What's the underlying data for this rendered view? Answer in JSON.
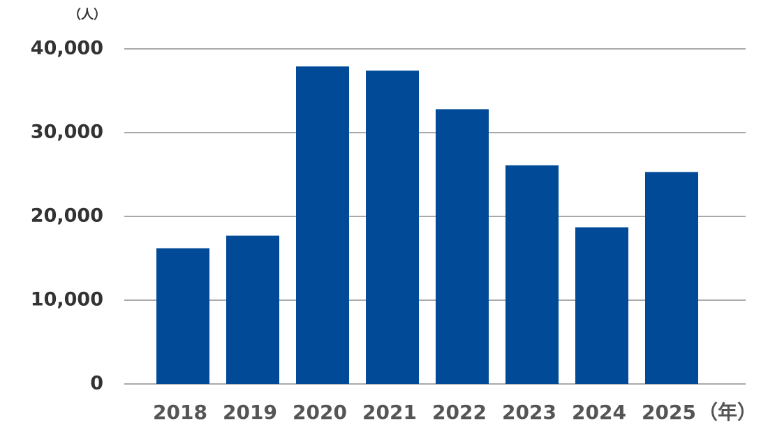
{
  "chart_data": {
    "type": "bar",
    "y_axis_label": "（人）",
    "x_axis_label": "（年）",
    "categories": [
      "2018",
      "2019",
      "2020",
      "2021",
      "2022",
      "2023",
      "2024",
      "2025"
    ],
    "values": [
      16200,
      17700,
      37900,
      37400,
      32800,
      26100,
      18700,
      25300
    ],
    "color": "#004a98",
    "ylim": [
      0,
      40000
    ],
    "yticks": [
      0,
      {
        "value": 10000,
        "label": "10,000"
      },
      {
        "value": 20000,
        "label": "20,000"
      },
      {
        "value": 30000,
        "label": "30,000"
      },
      {
        "value": 40000,
        "label": "40,000"
      }
    ],
    "grid": true
  }
}
